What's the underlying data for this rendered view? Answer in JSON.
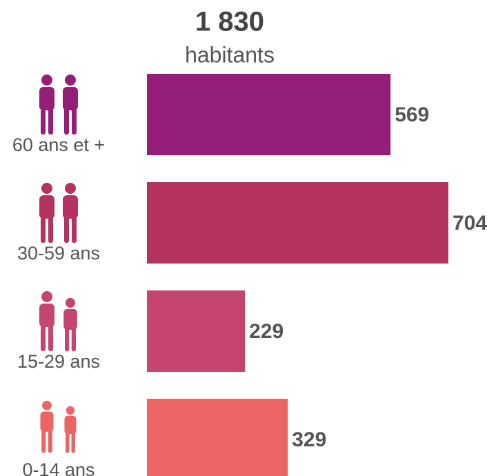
{
  "chart_data": {
    "type": "bar",
    "orientation": "horizontal",
    "title": "1 830",
    "subtitle": "habitants",
    "categories": [
      "60 ans et +",
      "30-59 ans",
      "15-29 ans",
      "0-14 ans"
    ],
    "values": [
      569,
      704,
      229,
      329
    ],
    "colors": [
      "#951f78",
      "#b43360",
      "#c64570",
      "#ec6565"
    ]
  }
}
